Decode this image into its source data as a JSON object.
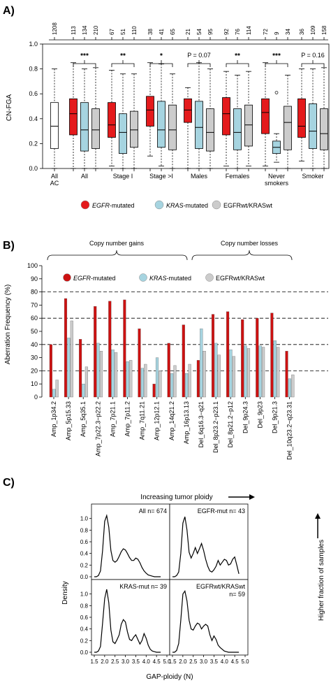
{
  "panelA": {
    "label": "A)",
    "ylabel": "CN-FGA",
    "yticks": [
      "0.0",
      "0.2",
      "0.4",
      "0.6",
      "0.8",
      "1.0"
    ],
    "top_counts": [
      "1208",
      "113",
      "134",
      "210",
      "67",
      "51",
      "110",
      "38",
      "41",
      "65",
      "21",
      "54",
      "95",
      "92",
      "76",
      "114",
      "72",
      "9",
      "34",
      "36",
      "109",
      "158"
    ],
    "groups": [
      {
        "label": "All\nAC",
        "sig": ""
      },
      {
        "label": "All",
        "sig": "***"
      },
      {
        "label": "Stage I",
        "sig": "**"
      },
      {
        "label": "Stage >I",
        "sig": "*"
      },
      {
        "label": "Males",
        "sig": "P = 0.07"
      },
      {
        "label": "Females",
        "sig": "**"
      },
      {
        "label": "Never\nsmokers",
        "sig": "***"
      },
      {
        "label": "Smoker",
        "sig": "P = 0.16"
      }
    ],
    "legend": [
      {
        "italic": "EGFR",
        "rest": "-mutated",
        "color": "#e41a1c"
      },
      {
        "italic": "KRAS",
        "rest": "-mutated",
        "color": "#a6d4e0"
      },
      {
        "italic": "",
        "rest": "EGFRwt/KRASwt",
        "color": "#cccccc"
      }
    ]
  },
  "panelB": {
    "label": "B)",
    "ylabel": "Aberration Frequency (%)",
    "yticks": [
      "0",
      "10",
      "20",
      "30",
      "40",
      "50",
      "60",
      "70",
      "80",
      "90",
      "100"
    ],
    "gains_label": "Copy number gains",
    "losses_label": "Copy number losses",
    "legend": [
      {
        "italic": "EGFR",
        "rest": "-mutated",
        "color": "#cc1111"
      },
      {
        "italic": "KRAS",
        "rest": "-mutated",
        "color": "#a6d4e0"
      },
      {
        "italic": "",
        "rest": "EGFRwt/KRASwt",
        "color": "#cccccc"
      }
    ]
  },
  "panelC": {
    "label": "C)",
    "top_arrow_label": "Increasing tumor ploidy",
    "right_arrow_label": "Higher fraction of samples",
    "ylabel": "Density",
    "xlabel": "GAP-ploidy (N)",
    "yticks": [
      "0.0",
      "0.2",
      "0.4",
      "0.6",
      "0.8",
      "1.0"
    ],
    "xticks": [
      "1.5",
      "2.0",
      "2.5",
      "3.0",
      "3.5",
      "4.0",
      "4.5",
      "5.0"
    ],
    "subpanels": [
      {
        "title": "All n= 674"
      },
      {
        "title": "EGFR-mut n= 43"
      },
      {
        "title": "KRAS-mut n= 39"
      },
      {
        "title": "EGFRwt/KRASwt\nn= 59"
      }
    ]
  },
  "chart_data": [
    {
      "type": "box",
      "title": "",
      "ylabel": "CN-FGA",
      "ylim": [
        0,
        1.0
      ],
      "categories": [
        "All AC",
        "All",
        "Stage I",
        "Stage >I",
        "Males",
        "Females",
        "Never smokers",
        "Smoker"
      ],
      "series": [
        {
          "name": "All AC",
          "values": [
            {
              "group": "All AC",
              "min": 0.0,
              "q1": 0.16,
              "median": 0.34,
              "q3": 0.53,
              "max": 0.8
            }
          ]
        },
        {
          "name": "EGFR-mutated",
          "values": [
            {
              "group": "All",
              "min": 0.0,
              "q1": 0.27,
              "median": 0.44,
              "q3": 0.56,
              "max": 0.85
            },
            {
              "group": "Stage I",
              "min": 0.02,
              "q1": 0.25,
              "median": 0.35,
              "q3": 0.53,
              "max": 0.79
            },
            {
              "group": "Stage >I",
              "min": 0.1,
              "q1": 0.34,
              "median": 0.47,
              "q3": 0.58,
              "max": 0.85
            },
            {
              "group": "Males",
              "min": 0.0,
              "q1": 0.37,
              "median": 0.47,
              "q3": 0.56,
              "max": 0.65
            },
            {
              "group": "Females",
              "min": 0.02,
              "q1": 0.27,
              "median": 0.44,
              "q3": 0.57,
              "max": 0.78
            },
            {
              "group": "Never smokers",
              "min": 0.02,
              "q1": 0.28,
              "median": 0.45,
              "q3": 0.56,
              "max": 0.85
            },
            {
              "group": "Smoker",
              "min": 0.06,
              "q1": 0.25,
              "median": 0.34,
              "q3": 0.56,
              "max": 0.8
            }
          ]
        },
        {
          "name": "KRAS-mutated",
          "values": [
            {
              "group": "All",
              "min": 0.0,
              "q1": 0.14,
              "median": 0.31,
              "q3": 0.53,
              "max": 0.8
            },
            {
              "group": "Stage I",
              "min": 0.0,
              "q1": 0.12,
              "median": 0.29,
              "q3": 0.44,
              "max": 0.76
            },
            {
              "group": "Stage >I",
              "min": 0.02,
              "q1": 0.17,
              "median": 0.31,
              "q3": 0.54,
              "max": 0.84
            },
            {
              "group": "Males",
              "min": 0.0,
              "q1": 0.16,
              "median": 0.33,
              "q3": 0.54,
              "max": 0.85
            },
            {
              "group": "Females",
              "min": 0.0,
              "q1": 0.15,
              "median": 0.29,
              "q3": 0.48,
              "max": 0.75
            },
            {
              "group": "Never smokers",
              "min": 0.05,
              "q1": 0.12,
              "median": 0.17,
              "q3": 0.22,
              "max": 0.28,
              "outlier": 0.61
            },
            {
              "group": "Smoker",
              "min": 0.0,
              "q1": 0.16,
              "median": 0.3,
              "q3": 0.52,
              "max": 0.8
            }
          ]
        },
        {
          "name": "EGFRwt/KRASwt",
          "values": [
            {
              "group": "All",
              "min": 0.0,
              "q1": 0.16,
              "median": 0.31,
              "q3": 0.48,
              "max": 0.81
            },
            {
              "group": "Stage I",
              "min": 0.0,
              "q1": 0.17,
              "median": 0.31,
              "q3": 0.46,
              "max": 0.76
            },
            {
              "group": "Stage >I",
              "min": 0.0,
              "q1": 0.15,
              "median": 0.31,
              "q3": 0.51,
              "max": 0.76
            },
            {
              "group": "Males",
              "min": 0.0,
              "q1": 0.14,
              "median": 0.29,
              "q3": 0.48,
              "max": 0.8
            },
            {
              "group": "Females",
              "min": 0.02,
              "q1": 0.18,
              "median": 0.35,
              "q3": 0.51,
              "max": 0.78
            },
            {
              "group": "Never smokers",
              "min": 0.0,
              "q1": 0.15,
              "median": 0.37,
              "q3": 0.5,
              "max": 0.75
            },
            {
              "group": "Smoker",
              "min": 0.0,
              "q1": 0.15,
              "median": 0.28,
              "q3": 0.48,
              "max": 0.81
            }
          ]
        }
      ]
    },
    {
      "type": "bar",
      "title": "",
      "ylabel": "Aberration Frequency (%)",
      "ylim": [
        0,
        100
      ],
      "reference_lines": [
        20,
        40,
        60,
        80
      ],
      "categories": [
        "Amp_1p34.2",
        "Amp_5p15.33",
        "Amp_5q35.1",
        "Amp_7p22.3−p22.2",
        "Amp_7p21.1",
        "Amp_7p11.2",
        "Amp_7q11.21",
        "Amp_12p12.1",
        "Amp_14q21.2",
        "Amp_16p13.13",
        "Del_6q16.3−q21",
        "Del_8p23.2−p23.1",
        "Del_8p21.2−p12",
        "Del_9p24.3",
        "Del_9p23",
        "Del_9p21.3",
        "Del_10q23.2−q23.31"
      ],
      "series": [
        {
          "name": "EGFR-mutated",
          "values": [
            40,
            75,
            44,
            69,
            73,
            74,
            52,
            10,
            41,
            55,
            28,
            63,
            65,
            59,
            60,
            64,
            35
          ]
        },
        {
          "name": "KRAS-mutated",
          "values": [
            6,
            45,
            10,
            41,
            36,
            27,
            22,
            30,
            18,
            18,
            52,
            41,
            36,
            39,
            39,
            43,
            14
          ]
        },
        {
          "name": "EGFRwt/KRASwt",
          "values": [
            13,
            58,
            23,
            35,
            34,
            28,
            25,
            20,
            24,
            25,
            35,
            32,
            31,
            37,
            38,
            38,
            17
          ]
        }
      ]
    },
    {
      "type": "line",
      "title": "",
      "xlabel": "GAP-ploidy (N)",
      "ylabel": "Density",
      "xlim": [
        1.5,
        5.0
      ],
      "ylim": [
        0,
        1.1
      ],
      "x": [
        1.5,
        1.6,
        1.7,
        1.8,
        1.9,
        2.0,
        2.1,
        2.2,
        2.3,
        2.4,
        2.5,
        2.6,
        2.7,
        2.8,
        2.9,
        3.0,
        3.1,
        3.2,
        3.3,
        3.4,
        3.5,
        3.6,
        3.7,
        3.8,
        3.9,
        4.0,
        4.1,
        4.2,
        4.3,
        4.4,
        4.5,
        4.6,
        4.7
      ],
      "series": [
        {
          "name": "All n= 674",
          "values": [
            0.0,
            0.0,
            0.02,
            0.1,
            0.45,
            0.95,
            1.05,
            0.85,
            0.45,
            0.28,
            0.25,
            0.28,
            0.35,
            0.43,
            0.48,
            0.46,
            0.4,
            0.33,
            0.28,
            0.28,
            0.32,
            0.3,
            0.24,
            0.16,
            0.1,
            0.06,
            0.03,
            0.02,
            0.01,
            0.0,
            0.0,
            0.0,
            0.0
          ]
        },
        {
          "name": "EGFR-mut n= 43",
          "values": [
            0.0,
            0.0,
            0.02,
            0.08,
            0.4,
            0.92,
            1.03,
            0.8,
            0.42,
            0.32,
            0.4,
            0.5,
            0.4,
            0.48,
            0.57,
            0.45,
            0.3,
            0.18,
            0.1,
            0.08,
            0.12,
            0.18,
            0.28,
            0.2,
            0.25,
            0.3,
            0.28,
            0.2,
            0.22,
            0.3,
            0.34,
            0.2,
            0.05
          ]
        },
        {
          "name": "KRAS-mut n= 39",
          "values": [
            0.0,
            0.0,
            0.02,
            0.1,
            0.5,
            0.92,
            1.08,
            0.85,
            0.38,
            0.18,
            0.15,
            0.22,
            0.3,
            0.48,
            0.56,
            0.52,
            0.35,
            0.22,
            0.2,
            0.26,
            0.3,
            0.22,
            0.14,
            0.2,
            0.32,
            0.24,
            0.12,
            0.05,
            0.02,
            0.01,
            0.0,
            0.0,
            0.0
          ]
        },
        {
          "name": "EGFRwt/KRASwt n= 59",
          "values": [
            0.0,
            0.0,
            0.03,
            0.15,
            0.55,
            1.0,
            1.05,
            0.88,
            0.55,
            0.4,
            0.38,
            0.45,
            0.5,
            0.48,
            0.4,
            0.45,
            0.48,
            0.45,
            0.3,
            0.2,
            0.28,
            0.22,
            0.12,
            0.08,
            0.05,
            0.02,
            0.01,
            0.0,
            0.0,
            0.0,
            0.0,
            0.0,
            0.0
          ]
        }
      ]
    }
  ]
}
